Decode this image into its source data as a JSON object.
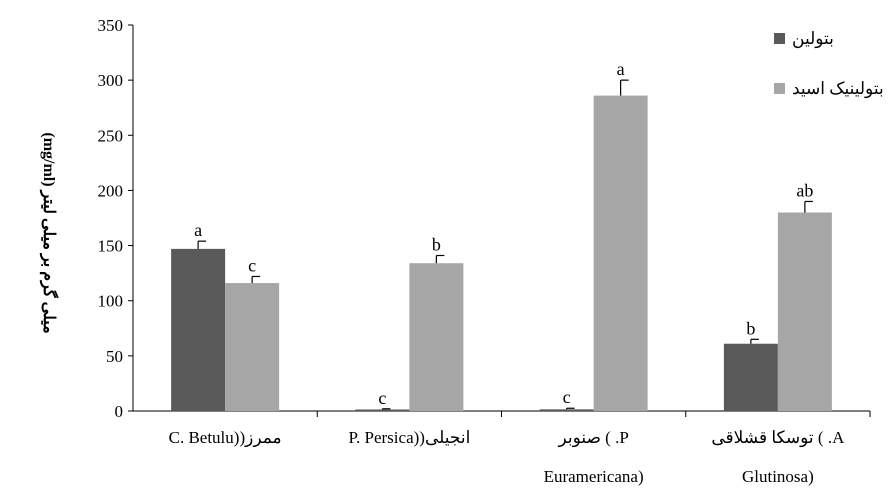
{
  "chart_data": {
    "type": "bar",
    "ylabel": "میلی گرم بر میلی لیتر (mg/ml)",
    "ylim": [
      0,
      350
    ],
    "yticks": [
      0,
      50,
      100,
      150,
      200,
      250,
      300,
      350
    ],
    "categories": [
      [
        "C. Betulu))ممرز"
      ],
      [
        "P. Persica))انجیلی"
      ],
      [
        "صنوبر ( .P",
        "Euramericana)"
      ],
      [
        "توسکا قشلاقی ( .A",
        "Glutinosa)"
      ]
    ],
    "series": [
      {
        "name": "بتولین",
        "color": "#595959",
        "values": [
          147,
          1,
          1.5,
          61
        ],
        "errors": [
          7,
          1,
          1,
          4
        ],
        "letters": [
          "a",
          "c",
          "c",
          "b"
        ]
      },
      {
        "name": "بتولینیک اسید",
        "color": "#a6a6a6",
        "values": [
          116,
          134,
          286,
          180
        ],
        "errors": [
          6,
          7,
          14,
          10
        ],
        "letters": [
          "c",
          "b",
          "a",
          "ab"
        ]
      }
    ],
    "legend_position": "top-right",
    "grid": false
  }
}
